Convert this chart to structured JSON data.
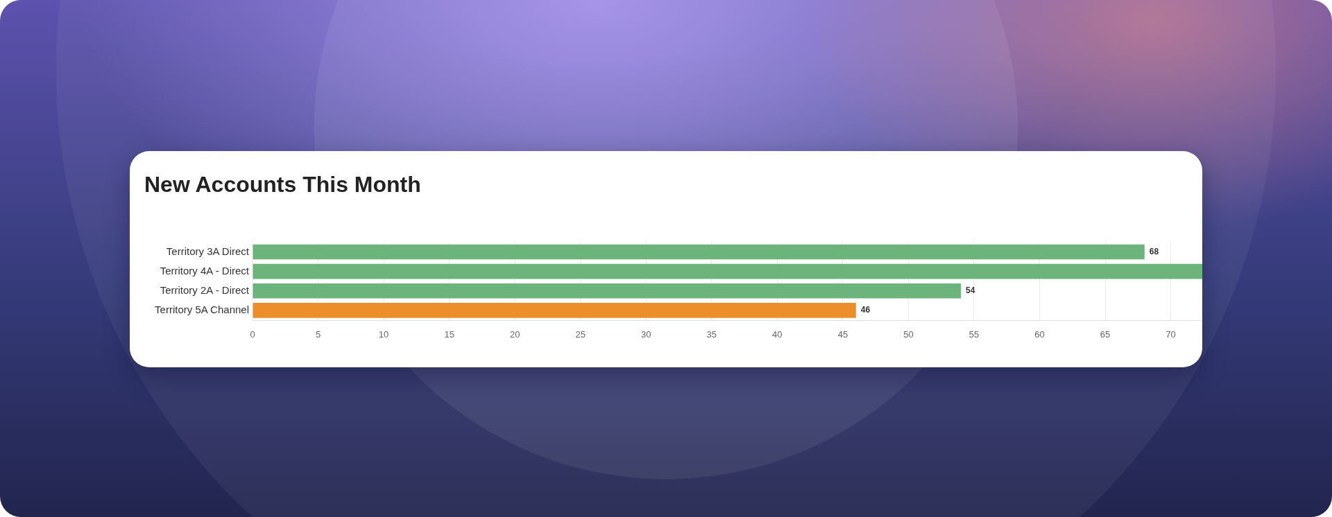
{
  "chart_data": {
    "type": "bar",
    "orientation": "horizontal",
    "title": "New Accounts This Month",
    "categories": [
      "Territory 3A Direct",
      "Territory 4A - Direct",
      "Territory 2A - Direct",
      "Territory 5A Channel"
    ],
    "values": [
      68,
      72.4,
      54,
      46
    ],
    "colors": [
      "#6db37c",
      "#6db37c",
      "#6db37c",
      "#ec8f2b"
    ],
    "value_labels": [
      "68",
      null,
      "54",
      "46"
    ],
    "xlim": [
      0,
      72.4
    ],
    "xticks": [
      0,
      5,
      10,
      15,
      20,
      25,
      30,
      35,
      40,
      45,
      50,
      55,
      60,
      65,
      70
    ],
    "grid": "x"
  }
}
